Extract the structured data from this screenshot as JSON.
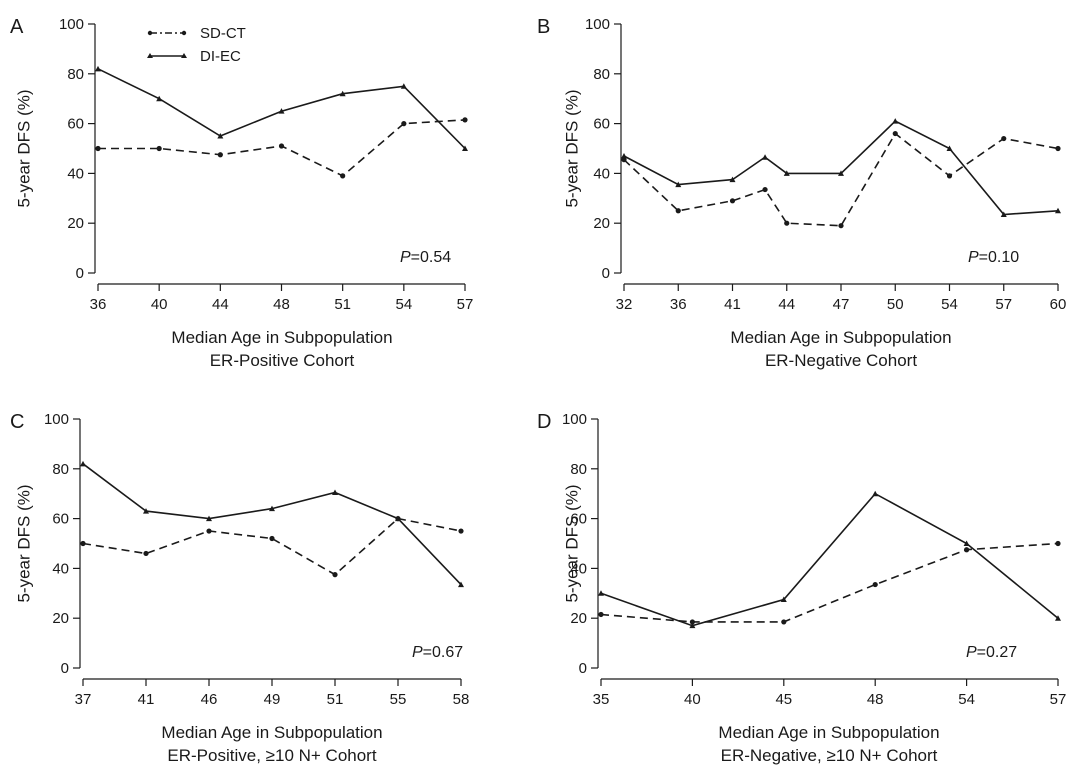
{
  "legend": {
    "entries": [
      {
        "label": "SD-CT",
        "style": "dashed",
        "marker": "dot"
      },
      {
        "label": "DI-EC",
        "style": "solid",
        "marker": "triangle"
      }
    ]
  },
  "chart_data": [
    {
      "type": "line",
      "panel": "A",
      "ylabel": "5-year DFS (%)",
      "xlabel": [
        "Median Age in Subpopulation",
        "ER-Positive Cohort"
      ],
      "ylim": [
        0,
        100
      ],
      "yticks": [
        0,
        20,
        40,
        60,
        80,
        100
      ],
      "x_categories": [
        "36",
        "40",
        "44",
        "48",
        "51",
        "54",
        "57"
      ],
      "p_prefix": "P",
      "p_value": "=0.54",
      "series": [
        {
          "name": "SD-CT",
          "points": [
            [
              0,
              50
            ],
            [
              1,
              50
            ],
            [
              2,
              47.5
            ],
            [
              3,
              51
            ],
            [
              4,
              39
            ],
            [
              5,
              60
            ],
            [
              6,
              61.5
            ]
          ]
        },
        {
          "name": "DI-EC",
          "points": [
            [
              0,
              82
            ],
            [
              1,
              70
            ],
            [
              2,
              55
            ],
            [
              3,
              65
            ],
            [
              4,
              72
            ],
            [
              5,
              75
            ],
            [
              6,
              50
            ]
          ]
        }
      ]
    },
    {
      "type": "line",
      "panel": "B",
      "ylabel": "5-year DFS (%)",
      "xlabel": [
        "Median Age in Subpopulation",
        "ER-Negative Cohort"
      ],
      "ylim": [
        0,
        100
      ],
      "yticks": [
        0,
        20,
        40,
        60,
        80,
        100
      ],
      "x_categories": [
        "32",
        "36",
        "41",
        "44",
        "47",
        "50",
        "54",
        "57",
        "60"
      ],
      "p_prefix": "P",
      "p_value": "=0.10",
      "series": [
        {
          "name": "SD-CT",
          "points": [
            [
              0,
              45.5
            ],
            [
              1,
              25
            ],
            [
              2,
              29
            ],
            [
              2.6,
              33.5
            ],
            [
              3,
              20
            ],
            [
              4,
              19
            ],
            [
              5,
              56
            ],
            [
              6,
              39
            ],
            [
              7,
              54
            ],
            [
              8,
              50
            ]
          ]
        },
        {
          "name": "DI-EC",
          "points": [
            [
              0,
              47
            ],
            [
              1,
              35.5
            ],
            [
              2,
              37.5
            ],
            [
              2.6,
              46.5
            ],
            [
              3,
              40
            ],
            [
              4,
              40
            ],
            [
              5,
              61
            ],
            [
              6,
              50
            ],
            [
              7,
              23.5
            ],
            [
              8,
              25
            ]
          ]
        }
      ]
    },
    {
      "type": "line",
      "panel": "C",
      "ylabel": "5-year DFS (%)",
      "xlabel": [
        "Median Age in Subpopulation",
        "ER-Positive, ≥10 N+ Cohort"
      ],
      "ylim": [
        0,
        100
      ],
      "yticks": [
        0,
        20,
        40,
        60,
        80,
        100
      ],
      "x_categories": [
        "37",
        "41",
        "46",
        "49",
        "51",
        "55",
        "58"
      ],
      "p_prefix": "P",
      "p_value": "=0.67",
      "series": [
        {
          "name": "SD-CT",
          "points": [
            [
              0,
              50
            ],
            [
              1,
              46
            ],
            [
              2,
              55
            ],
            [
              3,
              52
            ],
            [
              4,
              37.5
            ],
            [
              5,
              60
            ],
            [
              6,
              55
            ]
          ]
        },
        {
          "name": "DI-EC",
          "points": [
            [
              0,
              82
            ],
            [
              1,
              63
            ],
            [
              2,
              60
            ],
            [
              3,
              64
            ],
            [
              4,
              70.5
            ],
            [
              5,
              60
            ],
            [
              6,
              33.5
            ]
          ]
        }
      ]
    },
    {
      "type": "line",
      "panel": "D",
      "ylabel": "5-year DFS (%)",
      "xlabel": [
        "Median Age in Subpopulation",
        "ER-Negative, ≥10 N+ Cohort"
      ],
      "ylim": [
        0,
        100
      ],
      "yticks": [
        0,
        20,
        40,
        60,
        80,
        100
      ],
      "x_categories": [
        "35",
        "40",
        "45",
        "48",
        "54",
        "57"
      ],
      "p_prefix": "P",
      "p_value": "=0.27",
      "series": [
        {
          "name": "SD-CT",
          "points": [
            [
              0,
              21.5
            ],
            [
              1,
              18.5
            ],
            [
              2,
              18.5
            ],
            [
              3,
              33.5
            ],
            [
              4,
              47.5
            ],
            [
              5,
              50
            ]
          ]
        },
        {
          "name": "DI-EC",
          "points": [
            [
              0,
              30
            ],
            [
              1,
              17
            ],
            [
              2,
              27.5
            ],
            [
              3,
              70
            ],
            [
              4,
              50
            ],
            [
              5,
              20
            ]
          ]
        }
      ]
    }
  ]
}
